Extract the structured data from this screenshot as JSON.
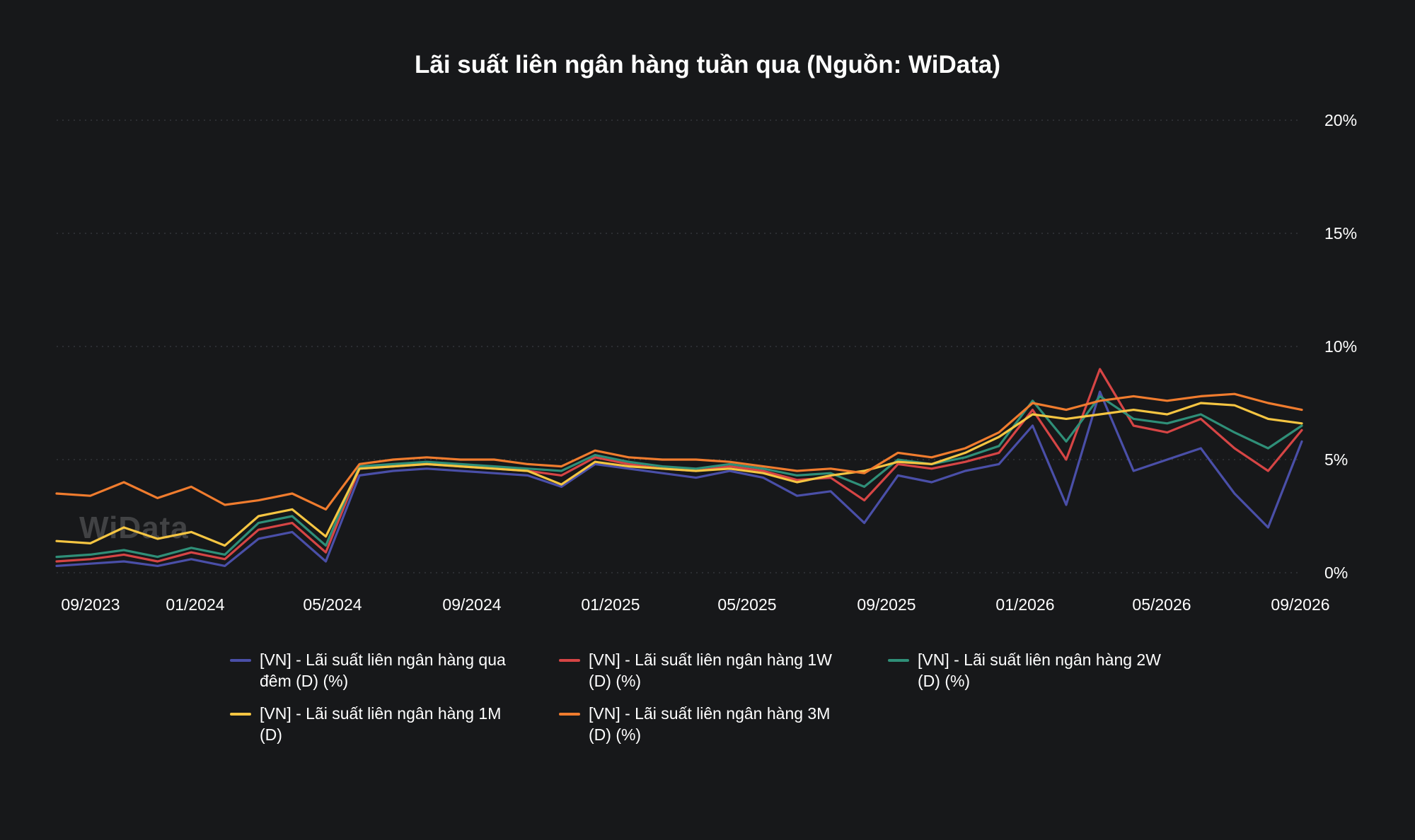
{
  "chart_data": {
    "type": "line",
    "title": "Lãi suất liên ngân hàng tuần qua (Nguồn: WiData)",
    "xlabel": "",
    "ylabel": "",
    "x_ticks": [
      "09/2023",
      "01/2024",
      "05/2024",
      "09/2024",
      "01/2025",
      "05/2025",
      "09/2025",
      "01/2026",
      "05/2026",
      "09/2026"
    ],
    "y_ticks": [
      "0%",
      "5%",
      "10%",
      "15%",
      "20%"
    ],
    "ylim": [
      0,
      20
    ],
    "x_range": [
      "2023-08",
      "2026-09"
    ],
    "grid": true,
    "legend_position": "bottom",
    "y_axis_side": "right",
    "x": [
      "2023-08",
      "2023-09",
      "2023-10",
      "2023-11",
      "2023-12",
      "2024-01",
      "2024-02",
      "2024-03",
      "2024-04",
      "2024-05",
      "2024-06",
      "2024-07",
      "2024-08",
      "2024-09",
      "2024-10",
      "2024-11",
      "2024-12",
      "2025-01",
      "2025-02",
      "2025-03",
      "2025-04",
      "2025-05",
      "2025-06",
      "2025-07",
      "2025-08",
      "2025-09",
      "2025-10",
      "2025-11",
      "2025-12",
      "2026-01",
      "2026-02",
      "2026-03",
      "2026-04",
      "2026-05",
      "2026-06",
      "2026-07",
      "2026-08",
      "2026-09"
    ],
    "series": [
      {
        "name": "[VN] - Lãi suất liên ngân hàng qua đêm (D) (%)",
        "color": "#4a4fa8",
        "values": [
          0.3,
          0.4,
          0.5,
          0.3,
          0.6,
          0.3,
          1.5,
          1.8,
          0.5,
          4.3,
          4.5,
          4.6,
          4.5,
          4.4,
          4.3,
          3.8,
          4.8,
          4.6,
          4.4,
          4.2,
          4.5,
          4.2,
          3.4,
          3.6,
          2.2,
          4.3,
          4.0,
          4.5,
          4.8,
          6.5,
          3.0,
          8.0,
          4.5,
          5.0,
          5.5,
          3.5,
          2.0,
          5.8
        ]
      },
      {
        "name": "[VN] - Lãi suất liên ngân hàng 1W (D) (%)",
        "color": "#d64545",
        "values": [
          0.5,
          0.6,
          0.8,
          0.5,
          0.9,
          0.6,
          1.9,
          2.2,
          0.9,
          4.6,
          4.7,
          4.8,
          4.7,
          4.6,
          4.5,
          4.3,
          5.1,
          4.8,
          4.6,
          4.5,
          4.7,
          4.5,
          4.1,
          4.2,
          3.2,
          4.8,
          4.6,
          4.9,
          5.3,
          7.2,
          5.0,
          9.0,
          6.5,
          6.2,
          6.8,
          5.5,
          4.5,
          6.3
        ]
      },
      {
        "name": "[VN] - Lãi suất liên ngân hàng 2W (D) (%)",
        "color": "#2f8f78",
        "values": [
          0.7,
          0.8,
          1.0,
          0.7,
          1.1,
          0.8,
          2.2,
          2.5,
          1.2,
          4.7,
          4.8,
          4.9,
          4.8,
          4.7,
          4.6,
          4.5,
          5.2,
          4.9,
          4.7,
          4.6,
          4.8,
          4.6,
          4.3,
          4.4,
          3.8,
          5.0,
          4.8,
          5.1,
          5.6,
          7.6,
          5.8,
          7.8,
          6.8,
          6.6,
          7.0,
          6.2,
          5.5,
          6.5
        ]
      },
      {
        "name": "[VN] - Lãi suất liên ngân hàng 1M (D)",
        "color": "#f5c542",
        "values": [
          1.4,
          1.3,
          2.0,
          1.5,
          1.8,
          1.2,
          2.5,
          2.8,
          1.6,
          4.6,
          4.7,
          4.8,
          4.7,
          4.6,
          4.5,
          3.9,
          4.9,
          4.7,
          4.6,
          4.5,
          4.6,
          4.4,
          4.0,
          4.3,
          4.5,
          4.9,
          4.8,
          5.3,
          6.0,
          7.0,
          6.8,
          7.0,
          7.2,
          7.0,
          7.5,
          7.4,
          6.8,
          6.6
        ]
      },
      {
        "name": "[VN] - Lãi suất liên ngân hàng 3M (D) (%)",
        "color": "#f07c2e",
        "values": [
          3.5,
          3.4,
          4.0,
          3.3,
          3.8,
          3.0,
          3.2,
          3.5,
          2.8,
          4.8,
          5.0,
          5.1,
          5.0,
          5.0,
          4.8,
          4.7,
          5.4,
          5.1,
          5.0,
          5.0,
          4.9,
          4.7,
          4.5,
          4.6,
          4.4,
          5.3,
          5.1,
          5.5,
          6.2,
          7.5,
          7.2,
          7.6,
          7.8,
          7.6,
          7.8,
          7.9,
          7.5,
          7.2
        ]
      }
    ],
    "watermark": "WiData"
  }
}
